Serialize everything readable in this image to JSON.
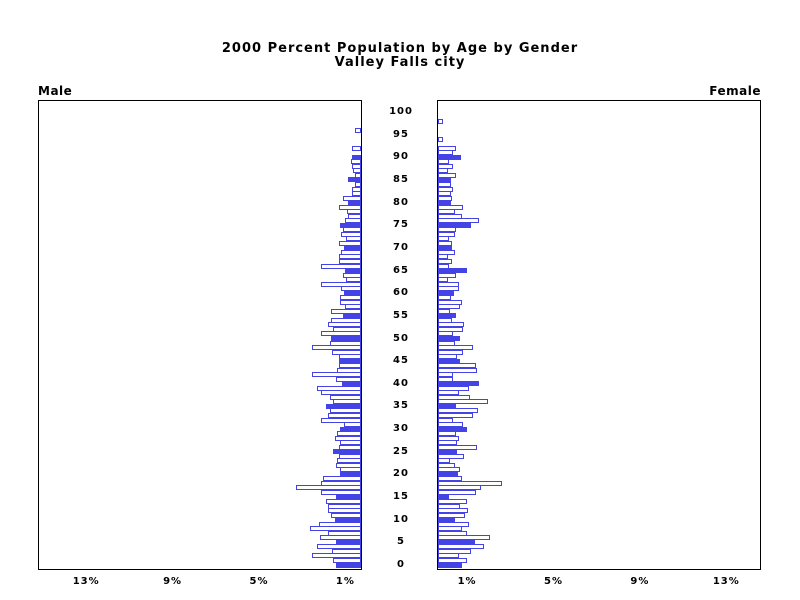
{
  "chart_data": {
    "type": "bar",
    "variant": "population-pyramid",
    "title": "2000 Percent Population by Age by Gender",
    "subtitle": "Valley Falls city",
    "left_header": "Male",
    "right_header": "Female",
    "x_axis_unit": "%",
    "x_tick_values": [
      1,
      5,
      9,
      13
    ],
    "x_tick_labels": [
      "1%",
      "5%",
      "9%",
      "13%"
    ],
    "xlim_percent": [
      0,
      15
    ],
    "age_axis_ticks": [
      0,
      5,
      10,
      15,
      20,
      25,
      30,
      35,
      40,
      45,
      50,
      55,
      60,
      65,
      70,
      75,
      80,
      85,
      90,
      95,
      100
    ],
    "age_range": [
      0,
      100
    ],
    "bar_fill_rule": "ages divisible by 5 drawn solid, others hollow outline",
    "legend": "none",
    "grid": "off",
    "colors": {
      "bar": "#4343e6",
      "axis": "#000000",
      "background": "#ffffff",
      "text": "#000000"
    },
    "male_percent_by_age": [
      1.17,
      1.3,
      2.25,
      1.34,
      2.05,
      1.17,
      1.9,
      1.52,
      2.36,
      1.93,
      1.19,
      1.4,
      1.52,
      1.55,
      1.6,
      1.14,
      1.83,
      3.01,
      1.86,
      1.78,
      0.99,
      0.95,
      1.15,
      1.1,
      1.0,
      1.3,
      1.0,
      0.95,
      1.2,
      1.1,
      0.95,
      0.8,
      1.83,
      1.54,
      1.45,
      1.64,
      1.3,
      1.45,
      1.87,
      2.05,
      0.88,
      1.14,
      2.25,
      1.1,
      1.0,
      1.0,
      1.03,
      1.34,
      2.25,
      1.42,
      1.37,
      1.83,
      1.28,
      1.52,
      1.4,
      0.82,
      1.4,
      0.76,
      0.97,
      0.97,
      0.8,
      0.91,
      1.86,
      0.68,
      0.82,
      0.75,
      1.84,
      1.04,
      1.0,
      0.91,
      0.8,
      1.03,
      0.68,
      0.93,
      0.84,
      0.96,
      0.73,
      0.58,
      0.65,
      1.0,
      0.58,
      0.84,
      0.4,
      0.4,
      0.3,
      0.58,
      0.28,
      0.38,
      0.43,
      0.46,
      0.43,
      0.0,
      0.4,
      0.0,
      0.0,
      0.0,
      0.27,
      0.0,
      0.0,
      0.0,
      0.0
    ],
    "female_percent_by_age": [
      1.1,
      1.36,
      0.98,
      1.51,
      2.13,
      1.71,
      2.42,
      1.32,
      1.1,
      1.43,
      0.79,
      1.25,
      1.37,
      1.02,
      1.32,
      0.52,
      1.78,
      1.98,
      2.95,
      1.1,
      0.91,
      1.02,
      0.81,
      0.55,
      1.21,
      0.9,
      1.79,
      0.9,
      0.97,
      0.85,
      1.32,
      1.17,
      0.7,
      1.63,
      1.87,
      0.85,
      2.33,
      1.48,
      0.98,
      1.45,
      1.92,
      0.7,
      0.7,
      1.82,
      1.76,
      1.01,
      0.86,
      1.17,
      1.63,
      0.78,
      1.0,
      0.7,
      1.17,
      1.21,
      0.65,
      0.85,
      0.55,
      1.0,
      1.12,
      0.59,
      0.75,
      0.97,
      0.98,
      0.47,
      0.83,
      1.36,
      0.51,
      0.67,
      0.47,
      0.78,
      0.67,
      0.67,
      0.51,
      0.78,
      0.83,
      1.51,
      1.92,
      1.09,
      0.78,
      1.17,
      0.59,
      0.65,
      0.59,
      0.7,
      0.59,
      0.59,
      0.83,
      0.44,
      0.7,
      0.5,
      1.06,
      0.7,
      0.85,
      0.0,
      0.23,
      0.0,
      0.0,
      0.0,
      0.23,
      0.0,
      0.0
    ]
  }
}
